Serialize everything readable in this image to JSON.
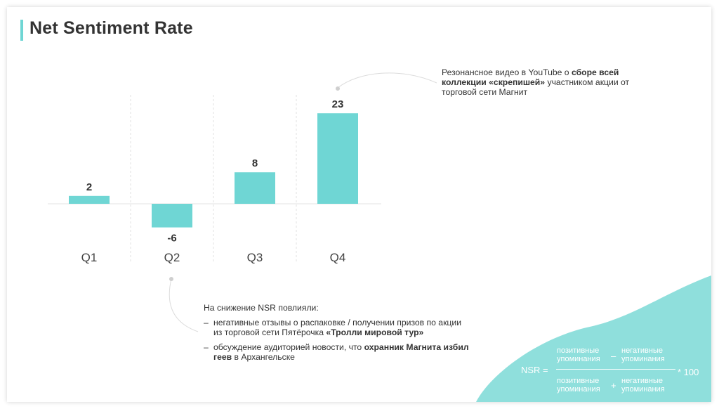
{
  "title": "Net Sentiment Rate",
  "chart_data": {
    "type": "bar",
    "categories": [
      "Q1",
      "Q2",
      "Q3",
      "Q4"
    ],
    "values": [
      2,
      -6,
      8,
      23
    ],
    "data_labels": [
      "2",
      "-6",
      "8",
      "23"
    ],
    "ylim": [
      -6,
      23
    ],
    "grid": "vertical dashed separators between categories",
    "bar_color": "#6fd6d4"
  },
  "annotations": {
    "q4": {
      "pre": "Резонансное видео в YouTube о ",
      "bold": "сборе всей коллекции «скрепишей»",
      "post": " участником акции от торговой сети Магнит"
    },
    "q2": {
      "intro": "На снижение NSR повлияли:",
      "items": [
        {
          "pre": "негативные отзывы о распаковке / получении призов по акции из торговой сети Пятёрочка ",
          "bold": "«Тролли мировой тур»",
          "post": ""
        },
        {
          "pre": "обсуждение аудиторией новости, что ",
          "bold": "охранник Магнита избил геев",
          "post": " в Архангельске"
        }
      ]
    }
  },
  "formula": {
    "lhs": "NSR =",
    "num_left": "позитивные упоминания",
    "num_op": "–",
    "num_right": "негативные упоминания",
    "den_left": "позитивные упоминания",
    "den_op": "+",
    "den_right": "негативные упоминания",
    "multiplier": "* 100"
  },
  "colors": {
    "accent": "#6fd6d4",
    "blob": "#8fdfdc",
    "text": "#333333"
  }
}
